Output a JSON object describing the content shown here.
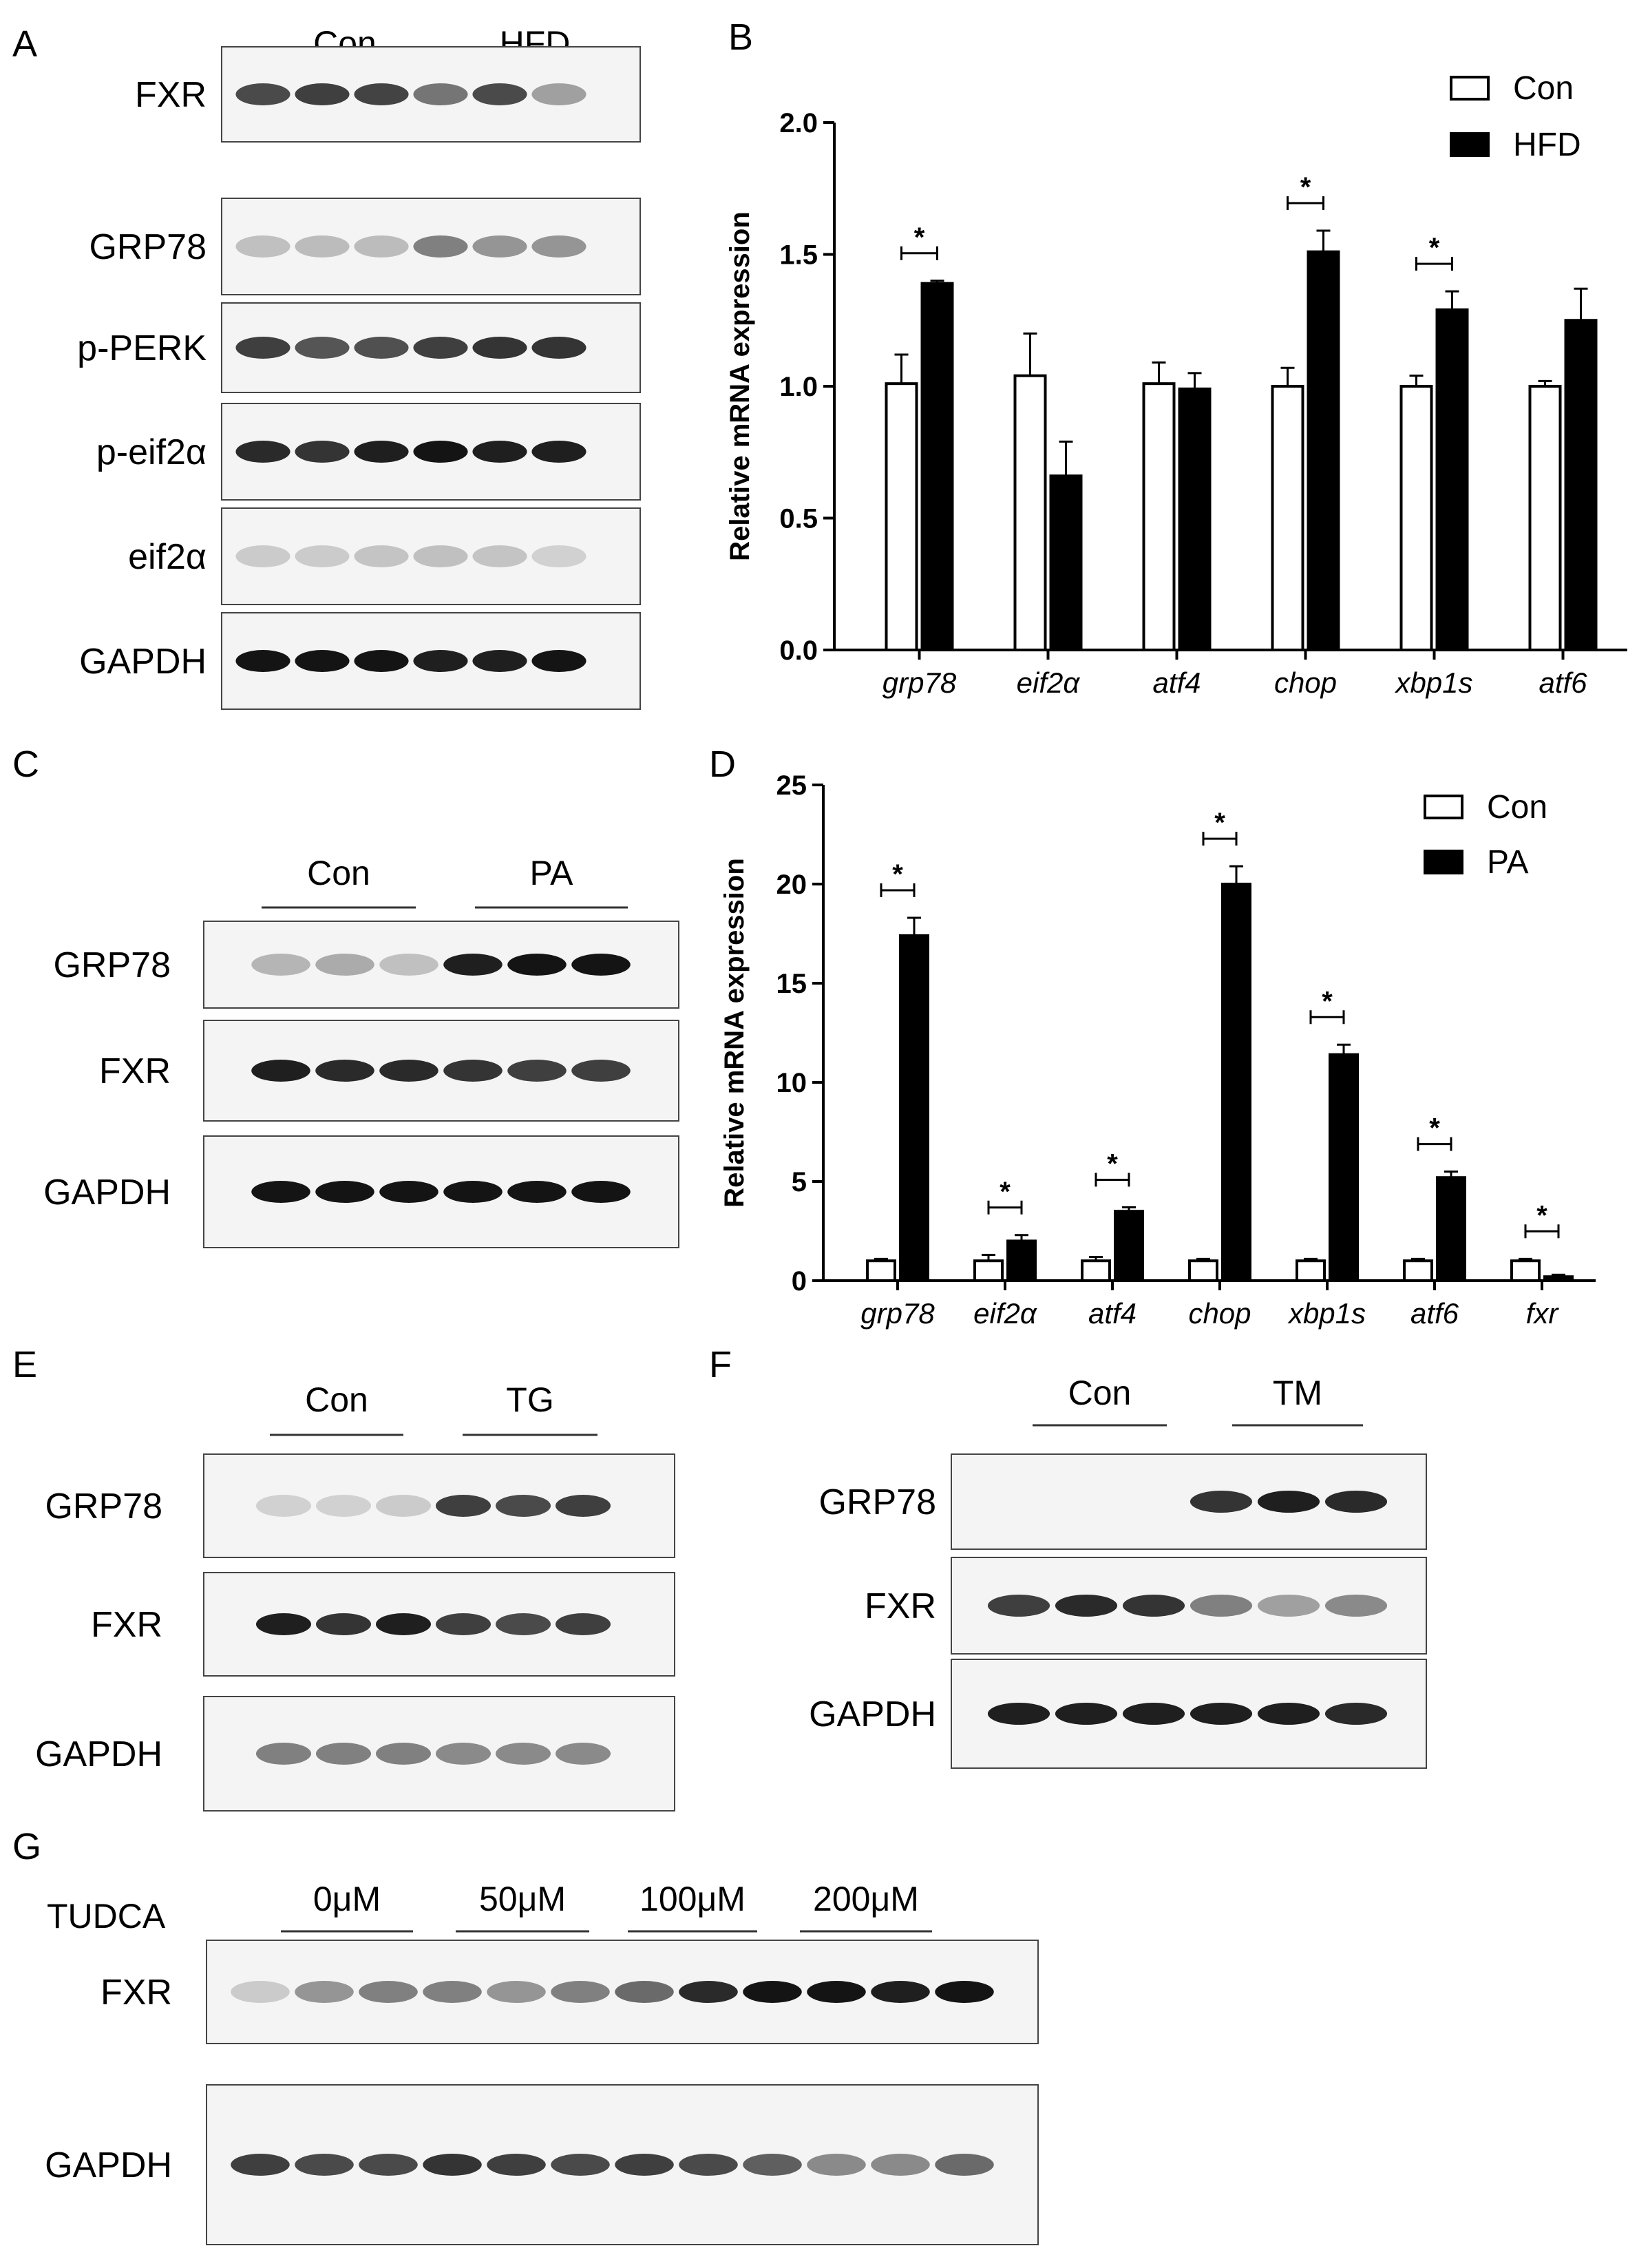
{
  "panels": {
    "A": {
      "label": "A",
      "groups": [
        "Con",
        "HFD"
      ],
      "lanes_per_group": 3,
      "rows": [
        {
          "name": "FXR",
          "bands": [
            0.75,
            0.8,
            0.78,
            0.55,
            0.75,
            0.35
          ]
        },
        {
          "name": "GRP78",
          "bands": [
            0.2,
            0.22,
            0.22,
            0.5,
            0.4,
            0.4
          ]
        },
        {
          "name": "p-PERK",
          "bands": [
            0.8,
            0.7,
            0.72,
            0.8,
            0.85,
            0.85
          ]
        },
        {
          "name": "p-eif2α",
          "bands": [
            0.9,
            0.85,
            0.95,
            1.0,
            0.95,
            0.95
          ]
        },
        {
          "name": "eif2α",
          "bands": [
            0.15,
            0.15,
            0.18,
            0.2,
            0.18,
            0.12
          ]
        },
        {
          "name": "GAPDH",
          "bands": [
            1.0,
            1.0,
            1.0,
            0.95,
            0.95,
            1.0
          ]
        }
      ]
    },
    "C": {
      "label": "C",
      "groups": [
        "Con",
        "PA"
      ],
      "lanes_per_group": 3,
      "rows": [
        {
          "name": "GRP78",
          "bands": [
            0.25,
            0.3,
            0.2,
            0.95,
            1.0,
            1.0
          ]
        },
        {
          "name": "FXR",
          "bands": [
            0.95,
            0.9,
            0.9,
            0.85,
            0.8,
            0.8
          ]
        },
        {
          "name": "GAPDH",
          "bands": [
            1.0,
            1.0,
            1.0,
            1.0,
            1.0,
            1.0
          ]
        }
      ]
    },
    "E": {
      "label": "E",
      "groups": [
        "Con",
        "TG"
      ],
      "lanes_per_group": 3,
      "rows": [
        {
          "name": "GRP78",
          "bands": [
            0.12,
            0.12,
            0.15,
            0.8,
            0.75,
            0.8
          ]
        },
        {
          "name": "FXR",
          "bands": [
            0.95,
            0.85,
            0.95,
            0.8,
            0.75,
            0.8
          ]
        },
        {
          "name": "GAPDH",
          "bands": [
            0.5,
            0.5,
            0.5,
            0.45,
            0.45,
            0.45
          ]
        }
      ]
    },
    "F": {
      "label": "F",
      "groups": [
        "Con",
        "TM"
      ],
      "lanes_per_group": 3,
      "rows": [
        {
          "name": "GRP78",
          "bands": [
            0.0,
            0.0,
            0.0,
            0.85,
            0.95,
            0.9
          ]
        },
        {
          "name": "FXR",
          "bands": [
            0.8,
            0.9,
            0.85,
            0.5,
            0.35,
            0.45
          ]
        },
        {
          "name": "GAPDH",
          "bands": [
            0.95,
            0.95,
            0.95,
            0.95,
            0.95,
            0.9
          ]
        }
      ]
    },
    "G": {
      "label": "G",
      "treatment_label": "TUDCA",
      "groups": [
        "0μM",
        "50μM",
        "100μM",
        "200μM"
      ],
      "lanes_per_group": 3,
      "rows": [
        {
          "name": "FXR",
          "bands": [
            0.15,
            0.4,
            0.5,
            0.5,
            0.4,
            0.5,
            0.6,
            0.9,
            1.0,
            1.0,
            0.95,
            1.0
          ]
        },
        {
          "name": "GAPDH",
          "bands": [
            0.8,
            0.75,
            0.75,
            0.85,
            0.8,
            0.75,
            0.8,
            0.75,
            0.65,
            0.45,
            0.45,
            0.6
          ]
        }
      ]
    }
  },
  "chart_data": [
    {
      "panel_label": "B",
      "type": "bar",
      "ylabel": "Relative mRNA expression",
      "ylim": [
        0,
        2.0
      ],
      "yticks": [
        "0.0",
        "0.5",
        "1.0",
        "1.5",
        "2.0"
      ],
      "categories": [
        "grp78",
        "eif2α",
        "atf4",
        "chop",
        "xbp1s",
        "atf6"
      ],
      "series": [
        {
          "name": "Con",
          "values": [
            1.01,
            1.04,
            1.01,
            1.0,
            1.0,
            1.0
          ],
          "errors": [
            0.11,
            0.16,
            0.08,
            0.07,
            0.04,
            0.02
          ]
        },
        {
          "name": "HFD",
          "values": [
            1.39,
            0.66,
            0.99,
            1.51,
            1.29,
            1.25
          ],
          "errors": [
            0.01,
            0.13,
            0.06,
            0.08,
            0.07,
            0.12
          ]
        }
      ],
      "significance": [
        "*",
        "",
        "",
        "*",
        "*",
        ""
      ],
      "legend": "top-right"
    },
    {
      "panel_label": "D",
      "type": "bar",
      "ylabel": "Relative mRNA expression",
      "ylim": [
        0,
        25
      ],
      "yticks": [
        "0",
        "5",
        "10",
        "15",
        "20",
        "25"
      ],
      "categories": [
        "grp78",
        "eif2α",
        "atf4",
        "chop",
        "xbp1s",
        "atf6",
        "fxr"
      ],
      "series": [
        {
          "name": "Con",
          "values": [
            1.0,
            1.0,
            1.0,
            1.0,
            1.0,
            1.0,
            1.0
          ],
          "errors": [
            0.1,
            0.3,
            0.2,
            0.1,
            0.1,
            0.1,
            0.1
          ]
        },
        {
          "name": "PA",
          "values": [
            17.4,
            2.0,
            3.5,
            20.0,
            11.4,
            5.2,
            0.2
          ],
          "errors": [
            0.9,
            0.3,
            0.2,
            0.9,
            0.5,
            0.3,
            0.1
          ]
        }
      ],
      "significance": [
        "*",
        "*",
        "*",
        "*",
        "*",
        "*",
        "*"
      ],
      "legend": "top-right"
    }
  ]
}
